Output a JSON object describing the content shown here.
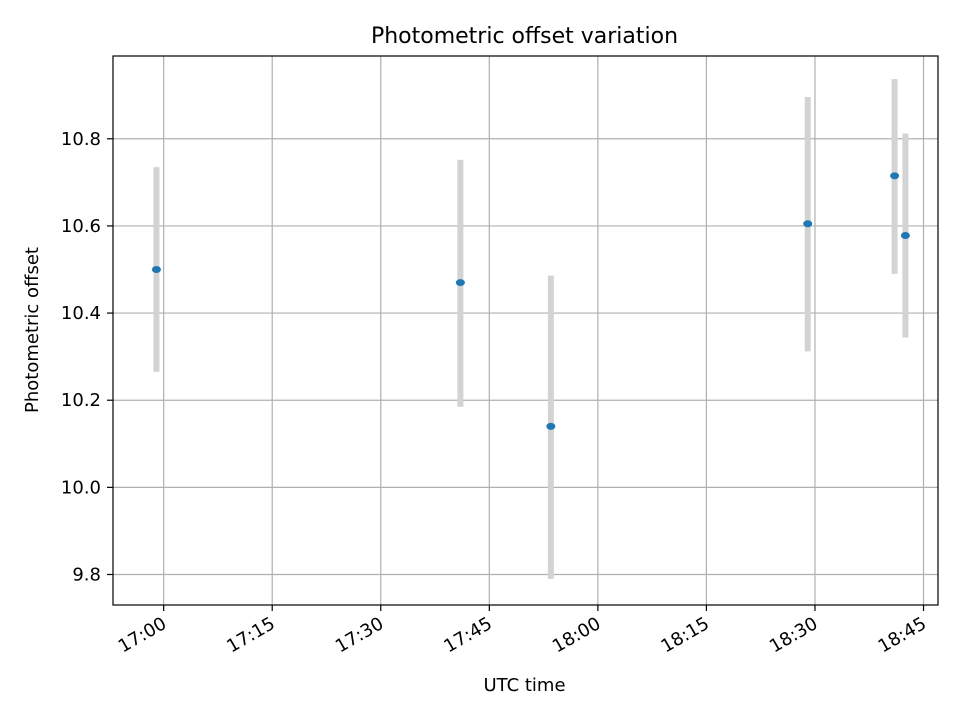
{
  "chart_data": {
    "type": "scatter",
    "title": "Photometric offset variation",
    "xlabel": "UTC time",
    "ylabel": "Photometric offset",
    "x_tick_labels": [
      "17:00",
      "17:15",
      "17:30",
      "17:45",
      "18:00",
      "18:15",
      "18:30",
      "18:45"
    ],
    "y_tick_labels": [
      "9.8",
      "10.0",
      "10.2",
      "10.4",
      "10.6",
      "10.8"
    ],
    "xlim": [
      "16:53",
      "18:47"
    ],
    "ylim": [
      9.73,
      10.99
    ],
    "grid": true,
    "colors": {
      "point": "#1f77b4",
      "errorbar": "#d3d3d3",
      "grid": "#b0b0b0"
    },
    "points": [
      {
        "time": "16:59",
        "y": 10.5,
        "yerr_low": 10.265,
        "yerr_high": 10.735
      },
      {
        "time": "17:41",
        "y": 10.47,
        "yerr_low": 10.185,
        "yerr_high": 10.752
      },
      {
        "time": "17:53.5",
        "y": 10.14,
        "yerr_low": 9.79,
        "yerr_high": 10.486
      },
      {
        "time": "18:29",
        "y": 10.605,
        "yerr_low": 10.312,
        "yerr_high": 10.896
      },
      {
        "time": "18:41",
        "y": 10.715,
        "yerr_low": 10.49,
        "yerr_high": 10.937
      },
      {
        "time": "18:42.5",
        "y": 10.578,
        "yerr_low": 10.344,
        "yerr_high": 10.812
      }
    ]
  }
}
